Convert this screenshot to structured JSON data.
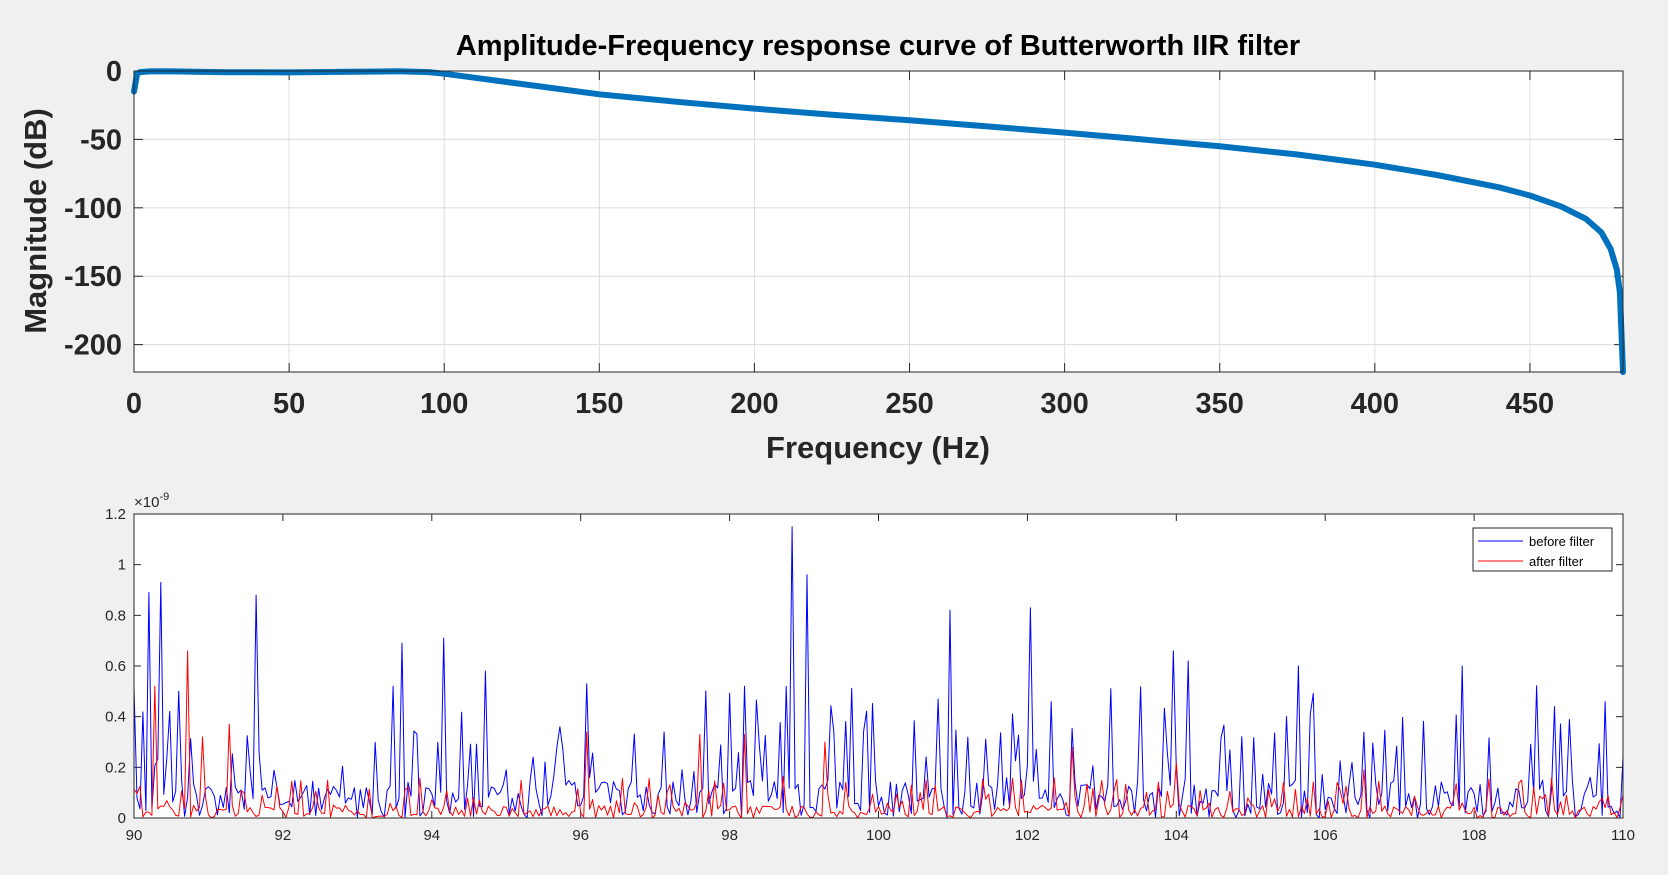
{
  "chart_data": [
    {
      "type": "line",
      "title": "Amplitude-Frequency response curve of Butterworth IIR filter",
      "xlabel": "Frequency (Hz)",
      "ylabel": "Magnitude (dB)",
      "xlim": [
        0,
        480
      ],
      "ylim": [
        -220,
        0
      ],
      "xticks": [
        0,
        50,
        100,
        150,
        200,
        250,
        300,
        350,
        400,
        450
      ],
      "xtick_labels": [
        "0",
        "50",
        "100",
        "150",
        "200",
        "250",
        "300",
        "350",
        "400",
        "450"
      ],
      "yticks": [
        0,
        -50,
        -100,
        -150,
        -200
      ],
      "ytick_labels": [
        "0",
        "-50",
        "-100",
        "-150",
        "-200"
      ],
      "grid": true,
      "color": "#0072bd",
      "series": [
        {
          "x": [
            0,
            1,
            2,
            5,
            10,
            20,
            30,
            50,
            70,
            85,
            95,
            100,
            110,
            125,
            150,
            175,
            200,
            225,
            250,
            275,
            300,
            325,
            350,
            375,
            400,
            420,
            440,
            450,
            460,
            468,
            473,
            476,
            478,
            479,
            480
          ],
          "y": [
            -15,
            -2,
            -0.8,
            -0.3,
            -0.2,
            -0.6,
            -0.9,
            -1.0,
            -0.6,
            -0.2,
            -0.8,
            -2,
            -5,
            -9.5,
            -17,
            -22.5,
            -27.5,
            -32,
            -36,
            -40.5,
            -45,
            -50,
            -55,
            -61,
            -68.5,
            -76,
            -85,
            -91,
            -99,
            -108,
            -118,
            -130,
            -145,
            -162,
            -220
          ]
        }
      ]
    },
    {
      "type": "line",
      "title": "",
      "xlabel": "",
      "ylabel": "",
      "exponent_label": "×10",
      "exponent_power": "-9",
      "xlim": [
        90,
        110
      ],
      "ylim": [
        0,
        1.2
      ],
      "xticks": [
        90,
        92,
        94,
        96,
        98,
        100,
        102,
        104,
        106,
        108,
        110
      ],
      "xtick_labels": [
        "90",
        "92",
        "94",
        "96",
        "98",
        "100",
        "102",
        "104",
        "106",
        "108",
        "110"
      ],
      "yticks": [
        0,
        0.2,
        0.4,
        0.6,
        0.8,
        1,
        1.2
      ],
      "ytick_labels": [
        "0",
        "0.2",
        "0.4",
        "0.6",
        "0.8",
        "1",
        "1.2"
      ],
      "grid": false,
      "legend_position": "top-right",
      "series": [
        {
          "name": "before filter",
          "color": "#0000ff",
          "x_start": 90,
          "x_step": 0.04,
          "peaks": [
            [
              90.2,
              0.89
            ],
            [
              90.35,
              0.93
            ],
            [
              90.6,
              0.5
            ],
            [
              91.65,
              0.88
            ],
            [
              93.6,
              0.69
            ],
            [
              94.15,
              0.71
            ],
            [
              94.7,
              0.58
            ],
            [
              96.1,
              0.53
            ],
            [
              98.2,
              0.52
            ],
            [
              98.85,
              1.15
            ],
            [
              99.05,
              0.96
            ],
            [
              100.95,
              0.82
            ],
            [
              102.05,
              0.83
            ],
            [
              103.95,
              0.66
            ],
            [
              104.15,
              0.62
            ],
            [
              105.65,
              0.6
            ],
            [
              107.85,
              0.6
            ],
            [
              109.1,
              0.44
            ]
          ],
          "base_level": 0.15,
          "spike_level": 0.45,
          "seed": 7
        },
        {
          "name": "after filter",
          "color": "#ff0000",
          "x_start": 90,
          "x_step": 0.04,
          "peaks": [
            [
              90.3,
              0.52
            ],
            [
              90.7,
              0.66
            ],
            [
              90.9,
              0.32
            ],
            [
              91.3,
              0.37
            ],
            [
              96.1,
              0.34
            ],
            [
              97.6,
              0.33
            ],
            [
              98.2,
              0.33
            ],
            [
              99.3,
              0.3
            ],
            [
              102.6,
              0.28
            ],
            [
              104.0,
              0.22
            ],
            [
              106.5,
              0.19
            ]
          ],
          "base_level": 0.05,
          "spike_level": 0.14,
          "seed": 23
        }
      ]
    }
  ]
}
